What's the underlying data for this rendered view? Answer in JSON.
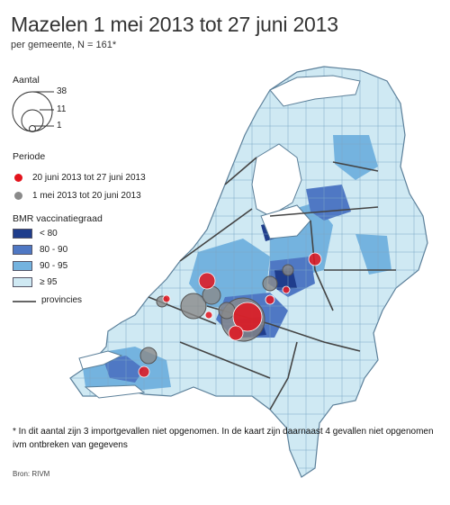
{
  "title": "Mazelen 1 mei 2013 tot 27 juni 2013",
  "subtitle": "per gemeente, N = 161*",
  "legend": {
    "size_heading": "Aantal",
    "size_values": [
      "38",
      "11",
      "1"
    ],
    "period_heading": "Periode",
    "periods": [
      {
        "label": "20 juni 2013 tot 27 juni 2013",
        "color": "#e3141d"
      },
      {
        "label": "1 mei 2013 tot 20 juni 2013",
        "color": "#8a8a8a"
      }
    ],
    "vacc_heading": "BMR vaccinatiegraad",
    "vacc_classes": [
      {
        "label": "< 80",
        "color": "#1f3d8c"
      },
      {
        "label": "80 - 90",
        "color": "#4f78c4"
      },
      {
        "label": "90 - 95",
        "color": "#74b3df"
      },
      {
        "label": "≥ 95",
        "color": "#cfe9f3"
      }
    ],
    "provinces_label": "provincies"
  },
  "footnote": "* In dit aantal zijn 3 importgevallen niet opgenomen. In de kaart zijn daarnaast 4 gevallen niet opgenomen ivm ontbreken van gegevens",
  "source": "Bron: RIVM",
  "colors": {
    "land_base": "#cfe9f3",
    "water": "#ffffff",
    "border": "#7aa8c6",
    "province_line": "#555555"
  }
}
